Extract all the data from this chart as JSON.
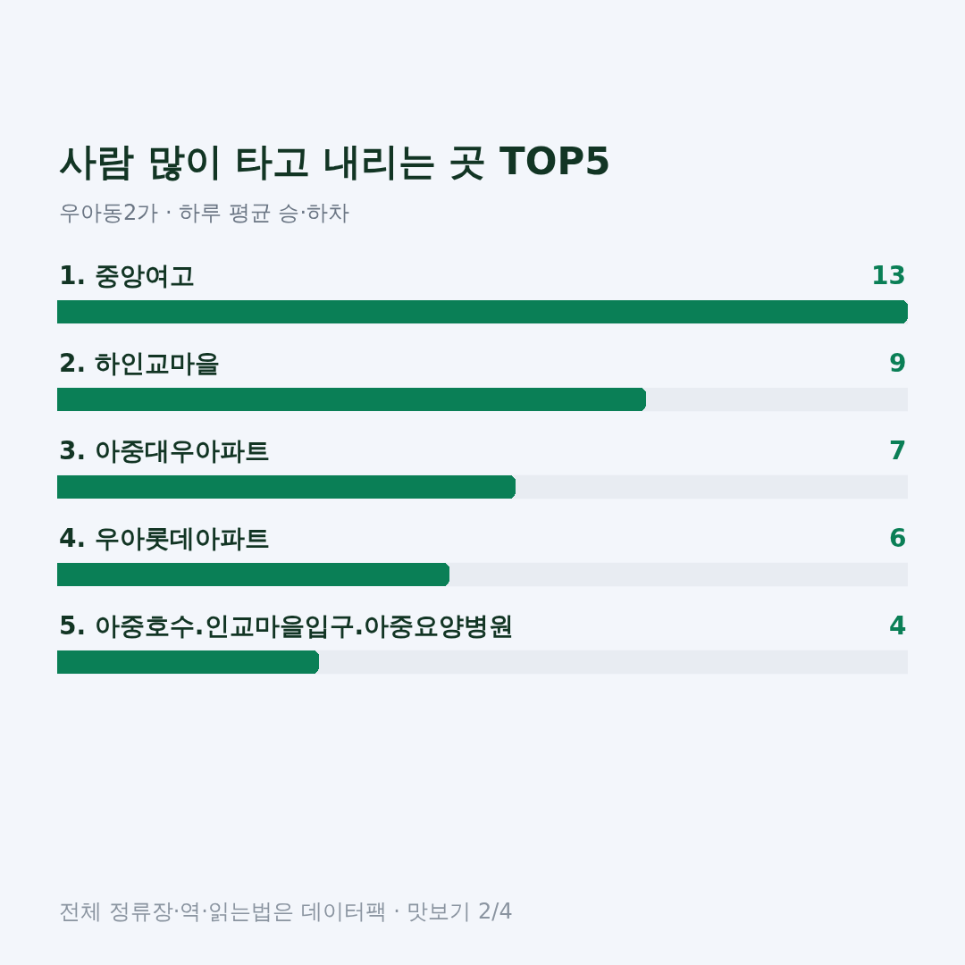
{
  "chart_data": {
    "type": "bar",
    "orientation": "horizontal",
    "title": "사람 많이 타고 내리는 곳 TOP5",
    "subtitle": "우아동2가 · 하루 평균 승·하차",
    "categories": [
      "1. 중앙여고",
      "2. 하인교마을",
      "3. 아중대우아파트",
      "4. 우아롯데아파트",
      "5. 아중호수.인교마을입구.아중요양병원"
    ],
    "values": [
      13,
      9,
      7,
      6,
      4
    ],
    "color": "#0a7f56",
    "data_labels": true,
    "legend": false,
    "annotations": [
      "전체 정류장·역·읽는법은 데이터팩 · 맛보기 2/4"
    ]
  }
}
